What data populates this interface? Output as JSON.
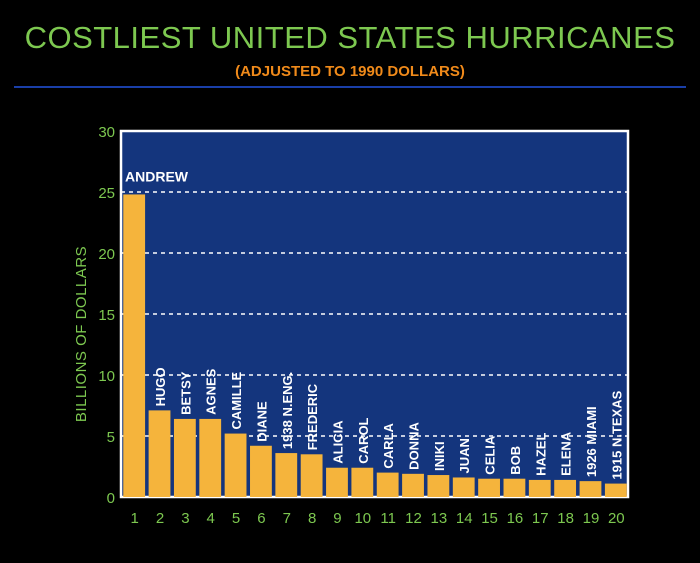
{
  "header": {
    "title": "COSTLIEST UNITED STATES HURRICANES",
    "subtitle": "(ADJUSTED TO 1990 DOLLARS)"
  },
  "colors": {
    "background": "#000000",
    "plot_area": "#14357d",
    "bar": "#f5b43c",
    "title": "#7dc850",
    "subtitle": "#f08a1a",
    "axis_text": "#7dc850",
    "label_text": "#ffffff"
  },
  "chart_data": {
    "type": "bar",
    "title": "COSTLIEST UNITED STATES HURRICANES",
    "subtitle": "(ADJUSTED TO 1990 DOLLARS)",
    "xlabel": "",
    "ylabel": "BILLIONS OF DOLLARS",
    "ylim": [
      0,
      30
    ],
    "yticks": [
      0,
      5,
      10,
      15,
      20,
      25,
      30
    ],
    "grid": "horizontal dashed",
    "categories": [
      "1",
      "2",
      "3",
      "4",
      "5",
      "6",
      "7",
      "8",
      "9",
      "10",
      "11",
      "12",
      "13",
      "14",
      "15",
      "16",
      "17",
      "18",
      "19",
      "20"
    ],
    "bar_labels": [
      "ANDREW",
      "HUGO",
      "BETSY",
      "AGNES",
      "CAMILLE",
      "DIANE",
      "1938 N.ENG.",
      "FREDERIC",
      "ALICIA",
      "CAROL",
      "CARLA",
      "DONNA",
      "INIKI",
      "JUAN",
      "CELIA",
      "BOB",
      "HAZEL",
      "ELENA",
      "1926 MIAMI",
      "1915 N.TEXAS"
    ],
    "values": [
      24.8,
      7.1,
      6.4,
      6.4,
      5.2,
      4.2,
      3.6,
      3.5,
      2.4,
      2.4,
      2.0,
      1.9,
      1.8,
      1.6,
      1.5,
      1.5,
      1.4,
      1.4,
      1.3,
      1.1
    ]
  }
}
